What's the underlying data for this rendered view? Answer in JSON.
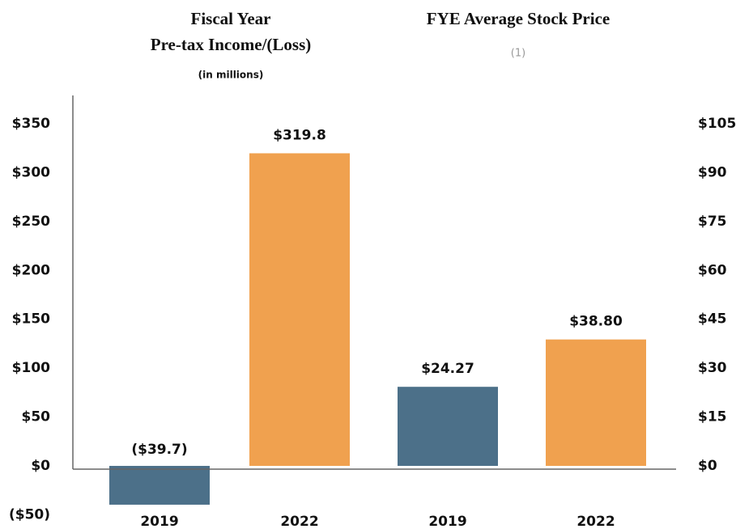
{
  "chart_data": [
    {
      "type": "bar",
      "title": [
        "Fiscal Year",
        "Pre-tax Income/(Loss)"
      ],
      "subtitle": "(in millions)",
      "categories": [
        "2019",
        "2022"
      ],
      "values": [
        -39.7,
        319.8
      ],
      "value_labels": [
        "($39.7)",
        "$319.8"
      ],
      "colors": [
        "#4c7089",
        "#f0a14f"
      ],
      "ylim": [
        -50,
        350
      ],
      "yticks": [
        {
          "value": -50,
          "label": "($50)"
        },
        {
          "value": 0,
          "label": "$0"
        },
        {
          "value": 50,
          "label": "$50"
        },
        {
          "value": 100,
          "label": "$100"
        },
        {
          "value": 150,
          "label": "$150"
        },
        {
          "value": 200,
          "label": "$200"
        },
        {
          "value": 250,
          "label": "$250"
        },
        {
          "value": 300,
          "label": "$300"
        },
        {
          "value": 350,
          "label": "$350"
        }
      ]
    },
    {
      "type": "bar",
      "title": [
        "FYE Average Stock Price"
      ],
      "subtitle": "(1)",
      "axis": "y2",
      "categories": [
        "2019",
        "2022"
      ],
      "values": [
        24.27,
        38.8
      ],
      "value_labels": [
        "$24.27",
        "$38.80"
      ],
      "colors": [
        "#4c7089",
        "#f0a14f"
      ],
      "y2lim": [
        -15,
        105
      ],
      "y2ticks": [
        {
          "value": 0,
          "label": "$0"
        },
        {
          "value": 15,
          "label": "$15"
        },
        {
          "value": 30,
          "label": "$30"
        },
        {
          "value": 45,
          "label": "$45"
        },
        {
          "value": 60,
          "label": "$60"
        },
        {
          "value": 75,
          "label": "$75"
        },
        {
          "value": 90,
          "label": "$90"
        },
        {
          "value": 105,
          "label": "$105"
        }
      ]
    }
  ]
}
